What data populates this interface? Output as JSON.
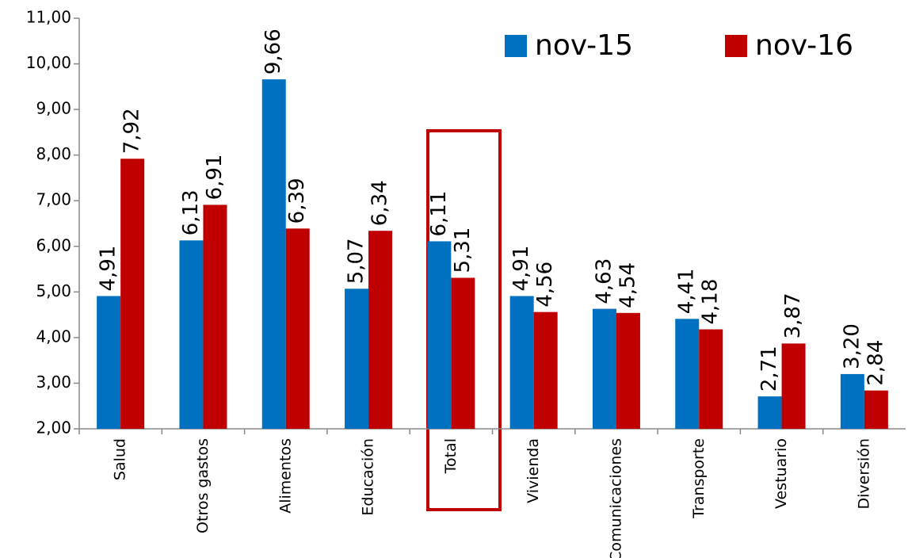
{
  "chart_data": {
    "type": "bar",
    "categories": [
      "Salud",
      "Otros gastos",
      "Alimentos",
      "Educación",
      "Total",
      "Vivienda",
      "Comunicaciones",
      "Transporte",
      "Vestuario",
      "Diversión"
    ],
    "series": [
      {
        "name": "nov-15",
        "color": "#0070c0",
        "label_color": "#44546a",
        "values": [
          4.91,
          6.13,
          9.66,
          5.07,
          6.11,
          4.91,
          4.63,
          4.41,
          2.71,
          3.2
        ],
        "value_labels": [
          "4,91",
          "6,13",
          "9,66",
          "5,07",
          "6,11",
          "4,91",
          "4,63",
          "4,41",
          "2,71",
          "3,20"
        ]
      },
      {
        "name": "nov-16",
        "color": "#c00000",
        "label_color": "#c00000",
        "values": [
          7.92,
          6.91,
          6.39,
          6.34,
          5.31,
          4.56,
          4.54,
          4.18,
          3.87,
          2.84
        ],
        "value_labels": [
          "7,92",
          "6,91",
          "6,39",
          "6,34",
          "5,31",
          "4,56",
          "4,54",
          "4,18",
          "3,87",
          "2,84"
        ]
      }
    ],
    "ylim": [
      2,
      11
    ],
    "yticks": [
      {
        "value": 2,
        "label": "2,00"
      },
      {
        "value": 3,
        "label": "3,00"
      },
      {
        "value": 4,
        "label": "4,00"
      },
      {
        "value": 5,
        "label": "5,00"
      },
      {
        "value": 6,
        "label": "6,00"
      },
      {
        "value": 7,
        "label": "7,00"
      },
      {
        "value": 8,
        "label": "8,00"
      },
      {
        "value": 9,
        "label": "9,00"
      },
      {
        "value": 10,
        "label": "10,00"
      },
      {
        "value": 11,
        "label": "11,00"
      }
    ],
    "grid": false,
    "legend": "top-right"
  }
}
